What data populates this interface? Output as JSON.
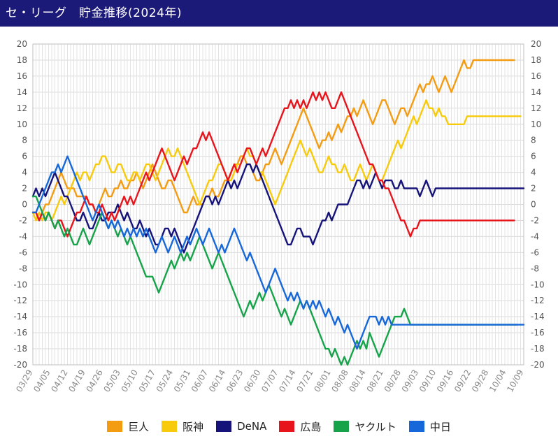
{
  "header": {
    "title": "セ・リーグ　貯金推移(2024年)"
  },
  "chart_data": {
    "type": "line",
    "title": "セ・リーグ　貯金推移(2024年)",
    "xlabel": "",
    "ylabel": "",
    "ylim": [
      -20,
      20
    ],
    "y_ticks": [
      20,
      18,
      16,
      14,
      12,
      10,
      8,
      6,
      4,
      2,
      0,
      -2,
      -4,
      -6,
      -8,
      -10,
      -12,
      -14,
      -16,
      -18,
      -20
    ],
    "x_tick_labels": [
      "03/29",
      "04/05",
      "04/12",
      "04/19",
      "04/26",
      "05/03",
      "05/10",
      "05/17",
      "05/24",
      "05/31",
      "06/07",
      "06/14",
      "06/23",
      "06/30",
      "07/07",
      "07/14",
      "07/21",
      "08/01",
      "08/08",
      "08/14",
      "08/21",
      "08/28",
      "09/03",
      "09/10",
      "09/16",
      "09/22",
      "09/28",
      "10/04",
      "10/09"
    ],
    "grid": true,
    "legend_position": "bottom",
    "series": [
      {
        "name": "巨人",
        "color": "#f39c12",
        "values": [
          -1,
          -1,
          -2,
          -1,
          0,
          0,
          1,
          2,
          3,
          4,
          3,
          2,
          2,
          2,
          1,
          1,
          1,
          1,
          0,
          0,
          -1,
          0,
          1,
          2,
          1,
          1,
          2,
          2,
          3,
          2,
          2,
          3,
          3,
          4,
          3,
          2,
          3,
          4,
          5,
          4,
          3,
          2,
          2,
          3,
          3,
          2,
          1,
          0,
          -1,
          -1,
          0,
          1,
          0,
          0,
          0,
          1,
          1,
          2,
          1,
          1,
          2,
          3,
          3,
          4,
          5,
          5,
          6,
          6,
          5,
          5,
          4,
          3,
          3,
          4,
          5,
          5,
          6,
          7,
          6,
          5,
          6,
          7,
          8,
          9,
          10,
          11,
          12,
          11,
          10,
          9,
          8,
          7,
          8,
          8,
          9,
          8,
          9,
          10,
          9,
          10,
          11,
          11,
          12,
          11,
          12,
          13,
          12,
          11,
          10,
          11,
          12,
          13,
          13,
          12,
          11,
          10,
          11,
          12,
          12,
          11,
          12,
          13,
          14,
          15,
          14,
          15,
          15,
          16,
          15,
          14,
          15,
          16,
          15,
          14,
          15,
          16,
          17,
          18,
          17,
          17,
          18,
          18,
          18,
          18,
          18,
          18,
          18,
          18,
          18,
          18,
          18,
          18,
          18,
          18
        ]
      },
      {
        "name": "阪神",
        "color": "#f7cb0c",
        "values": [
          -1,
          -2,
          -1,
          -2,
          -1,
          -1,
          -2,
          -1,
          0,
          1,
          0,
          1,
          2,
          3,
          4,
          3,
          4,
          4,
          3,
          4,
          5,
          5,
          6,
          6,
          5,
          4,
          4,
          5,
          5,
          4,
          3,
          3,
          4,
          4,
          3,
          4,
          5,
          5,
          4,
          3,
          4,
          5,
          6,
          7,
          6,
          6,
          7,
          6,
          5,
          4,
          3,
          2,
          1,
          0,
          1,
          2,
          3,
          3,
          4,
          5,
          5,
          4,
          3,
          3,
          4,
          5,
          5,
          6,
          7,
          6,
          6,
          5,
          4,
          4,
          3,
          2,
          1,
          0,
          1,
          2,
          3,
          4,
          5,
          6,
          7,
          8,
          7,
          6,
          7,
          6,
          5,
          4,
          4,
          5,
          6,
          5,
          5,
          4,
          4,
          5,
          4,
          3,
          3,
          4,
          5,
          4,
          3,
          4,
          5,
          4,
          3,
          3,
          4,
          5,
          6,
          7,
          8,
          7,
          8,
          9,
          10,
          11,
          10,
          11,
          12,
          13,
          12,
          12,
          11,
          12,
          11,
          11,
          10,
          10,
          10,
          10,
          10,
          10,
          11,
          11,
          11,
          11,
          11,
          11,
          11,
          11,
          11,
          11,
          11,
          11,
          11,
          11,
          11,
          11,
          11,
          11
        ]
      },
      {
        "name": "DeNA",
        "color": "#15137a",
        "values": [
          1,
          2,
          1,
          2,
          1,
          2,
          3,
          4,
          3,
          2,
          1,
          1,
          0,
          -1,
          -2,
          -2,
          -1,
          -2,
          -3,
          -3,
          -2,
          -1,
          -2,
          -2,
          -1,
          -1,
          -1,
          0,
          -1,
          -2,
          -1,
          -2,
          -3,
          -3,
          -2,
          -3,
          -4,
          -3,
          -4,
          -5,
          -5,
          -4,
          -3,
          -3,
          -4,
          -3,
          -4,
          -5,
          -6,
          -5,
          -4,
          -3,
          -2,
          -1,
          0,
          1,
          1,
          0,
          1,
          0,
          1,
          2,
          3,
          2,
          3,
          2,
          3,
          4,
          5,
          5,
          4,
          5,
          4,
          3,
          2,
          1,
          0,
          -1,
          -2,
          -3,
          -4,
          -5,
          -5,
          -4,
          -3,
          -3,
          -4,
          -4,
          -4,
          -5,
          -4,
          -3,
          -2,
          -2,
          -1,
          -2,
          -1,
          0,
          0,
          0,
          0,
          1,
          2,
          3,
          3,
          2,
          3,
          2,
          3,
          4,
          3,
          2,
          3,
          3,
          3,
          2,
          2,
          3,
          2,
          2,
          2,
          2,
          2,
          1,
          2,
          3,
          2,
          1,
          2,
          2,
          2,
          2,
          2,
          2,
          2,
          2,
          2,
          2,
          2,
          2,
          2,
          2,
          2,
          2,
          2,
          2,
          2,
          2,
          2,
          2,
          2,
          2,
          2,
          2,
          2,
          2,
          2
        ]
      },
      {
        "name": "広島",
        "color": "#e8141c",
        "values": [
          -1,
          -1,
          -2,
          -1,
          -2,
          -1,
          -2,
          -3,
          -2,
          -2,
          -3,
          -4,
          -3,
          -2,
          -1,
          -1,
          0,
          1,
          0,
          0,
          -1,
          -1,
          0,
          -1,
          -2,
          -1,
          -2,
          -1,
          0,
          1,
          0,
          1,
          0,
          1,
          2,
          3,
          4,
          3,
          4,
          5,
          6,
          7,
          6,
          5,
          4,
          3,
          4,
          5,
          6,
          5,
          6,
          7,
          7,
          8,
          9,
          8,
          9,
          8,
          7,
          6,
          5,
          4,
          3,
          4,
          5,
          4,
          5,
          6,
          7,
          7,
          6,
          5,
          6,
          7,
          6,
          7,
          8,
          9,
          10,
          11,
          12,
          12,
          13,
          12,
          13,
          12,
          13,
          12,
          13,
          14,
          13,
          14,
          13,
          14,
          13,
          12,
          12,
          13,
          14,
          13,
          12,
          11,
          10,
          9,
          8,
          7,
          6,
          5,
          5,
          4,
          3,
          3,
          2,
          2,
          1,
          0,
          -1,
          -2,
          -2,
          -3,
          -4,
          -3,
          -3,
          -2,
          -2,
          -2,
          -2,
          -2,
          -2,
          -2,
          -2,
          -2,
          -2,
          -2,
          -2,
          -2,
          -2,
          -2,
          -2,
          -2,
          -2,
          -2,
          -2,
          -2,
          -2,
          -2,
          -2,
          -2,
          -2,
          -2,
          -2,
          -2,
          -2,
          -2
        ]
      },
      {
        "name": "ヤクルト",
        "color": "#16a34a",
        "values": [
          1,
          1,
          0,
          -1,
          -2,
          -1,
          -2,
          -3,
          -2,
          -3,
          -4,
          -3,
          -4,
          -5,
          -5,
          -4,
          -3,
          -4,
          -5,
          -4,
          -3,
          -2,
          -1,
          -2,
          -3,
          -2,
          -3,
          -4,
          -3,
          -4,
          -5,
          -4,
          -5,
          -6,
          -7,
          -8,
          -9,
          -9,
          -9,
          -10,
          -11,
          -10,
          -9,
          -8,
          -7,
          -8,
          -7,
          -6,
          -7,
          -6,
          -7,
          -6,
          -5,
          -4,
          -5,
          -6,
          -7,
          -8,
          -7,
          -6,
          -7,
          -8,
          -9,
          -10,
          -11,
          -12,
          -13,
          -14,
          -13,
          -12,
          -13,
          -12,
          -11,
          -12,
          -11,
          -10,
          -11,
          -12,
          -13,
          -14,
          -13,
          -14,
          -15,
          -14,
          -13,
          -12,
          -13,
          -12,
          -13,
          -14,
          -15,
          -16,
          -17,
          -18,
          -18,
          -19,
          -18,
          -19,
          -20,
          -19,
          -20,
          -19,
          -18,
          -17,
          -18,
          -17,
          -18,
          -16,
          -17,
          -18,
          -19,
          -18,
          -17,
          -16,
          -15,
          -14,
          -14,
          -14,
          -13,
          -14,
          -15,
          -15,
          -15,
          -15,
          -15,
          -15,
          -15,
          -15,
          -15,
          -15,
          -15,
          -15,
          -15,
          -15,
          -15,
          -15,
          -15,
          -15,
          -15,
          -15,
          -15,
          -15,
          -15,
          -15,
          -15,
          -15,
          -15,
          -15,
          -15,
          -15,
          -15,
          -15,
          -15,
          -15,
          -15
        ]
      },
      {
        "name": "中日",
        "color": "#1667d9",
        "values": [
          -1,
          -1,
          0,
          1,
          2,
          3,
          4,
          4,
          5,
          4,
          5,
          6,
          5,
          4,
          3,
          2,
          1,
          0,
          -1,
          -2,
          -1,
          0,
          -1,
          -2,
          -3,
          -2,
          -3,
          -2,
          -3,
          -4,
          -3,
          -4,
          -3,
          -4,
          -3,
          -4,
          -3,
          -4,
          -5,
          -6,
          -5,
          -4,
          -5,
          -6,
          -5,
          -4,
          -5,
          -6,
          -5,
          -4,
          -5,
          -4,
          -3,
          -4,
          -5,
          -4,
          -3,
          -4,
          -5,
          -6,
          -5,
          -6,
          -5,
          -4,
          -3,
          -4,
          -5,
          -6,
          -7,
          -6,
          -7,
          -8,
          -9,
          -10,
          -11,
          -10,
          -9,
          -8,
          -9,
          -10,
          -11,
          -12,
          -11,
          -12,
          -11,
          -12,
          -13,
          -12,
          -13,
          -12,
          -13,
          -12,
          -13,
          -14,
          -13,
          -14,
          -15,
          -14,
          -15,
          -16,
          -15,
          -16,
          -17,
          -18,
          -17,
          -16,
          -15,
          -14,
          -14,
          -14,
          -15,
          -14,
          -15,
          -14,
          -15,
          -15,
          -15,
          -15,
          -15,
          -15,
          -15,
          -15,
          -15,
          -15,
          -15,
          -15,
          -15,
          -15,
          -15,
          -15,
          -15,
          -15,
          -15,
          -15,
          -15,
          -15,
          -15,
          -15,
          -15,
          -15,
          -15,
          -15,
          -15,
          -15,
          -15,
          -15,
          -15,
          -15,
          -15,
          -15,
          -15,
          -15,
          -15,
          -15,
          -15,
          -15,
          -15
        ]
      }
    ]
  },
  "legend": {
    "items": [
      {
        "label": "巨人",
        "color": "#f39c12"
      },
      {
        "label": "阪神",
        "color": "#f7cb0c"
      },
      {
        "label": "DeNA",
        "color": "#15137a"
      },
      {
        "label": "広島",
        "color": "#e8141c"
      },
      {
        "label": "ヤクルト",
        "color": "#16a34a"
      },
      {
        "label": "中日",
        "color": "#1667d9"
      }
    ]
  }
}
